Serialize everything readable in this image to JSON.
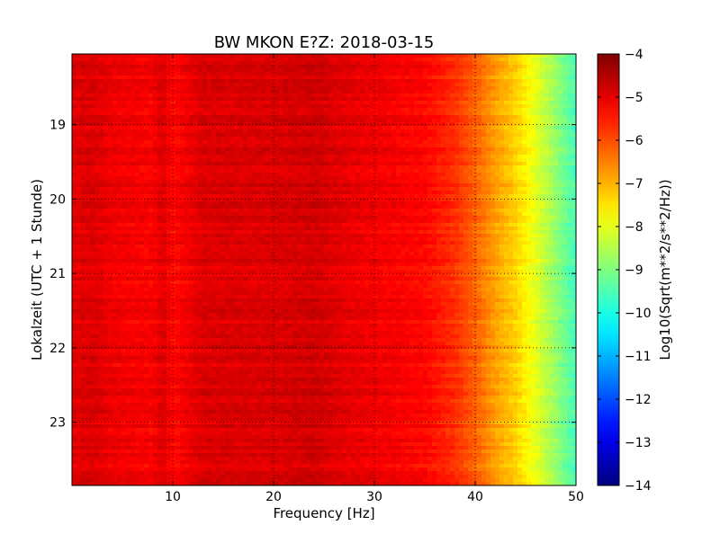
{
  "chart_data": {
    "type": "heatmap",
    "title": "BW MKON E?Z: 2018-03-15",
    "xlabel": "Frequency [Hz]",
    "ylabel": "Lokalzeit (UTC + 1 Stunde)",
    "xlim": [
      0,
      50
    ],
    "ylim_hours": [
      18.05,
      23.85
    ],
    "x_ticks": [
      {
        "value": 10,
        "label": "10"
      },
      {
        "value": 20,
        "label": "20"
      },
      {
        "value": 30,
        "label": "30"
      },
      {
        "value": 40,
        "label": "40"
      },
      {
        "value": 50,
        "label": "50"
      }
    ],
    "y_ticks": [
      {
        "value": 19,
        "label": "19"
      },
      {
        "value": 20,
        "label": "20"
      },
      {
        "value": 21,
        "label": "21"
      },
      {
        "value": 22,
        "label": "22"
      },
      {
        "value": 23,
        "label": "23"
      }
    ],
    "y_inverted": true,
    "grid": true,
    "colorscale": "jet",
    "colorbar": {
      "label": "Log10(Sqrt(m**2/s**2/Hz))",
      "min": -14,
      "max": -4,
      "ticks": [
        {
          "value": -4,
          "label": "−4"
        },
        {
          "value": -5,
          "label": "−5"
        },
        {
          "value": -6,
          "label": "−6"
        },
        {
          "value": -7,
          "label": "−7"
        },
        {
          "value": -8,
          "label": "−8"
        },
        {
          "value": -9,
          "label": "−9"
        },
        {
          "value": -10,
          "label": "−10"
        },
        {
          "value": -11,
          "label": "−11"
        },
        {
          "value": -12,
          "label": "−12"
        },
        {
          "value": -13,
          "label": "−13"
        },
        {
          "value": -14,
          "label": "−14"
        }
      ]
    },
    "spectrum_profile": [
      {
        "freq": 0,
        "level": -5.0
      },
      {
        "freq": 2,
        "level": -4.9
      },
      {
        "freq": 4,
        "level": -5.1
      },
      {
        "freq": 8,
        "level": -5.2
      },
      {
        "freq": 9,
        "level": -4.9
      },
      {
        "freq": 10,
        "level": -5.3
      },
      {
        "freq": 13,
        "level": -4.9
      },
      {
        "freq": 20,
        "level": -4.9
      },
      {
        "freq": 24,
        "level": -4.8
      },
      {
        "freq": 27,
        "level": -5.0
      },
      {
        "freq": 35,
        "level": -5.3
      },
      {
        "freq": 38,
        "level": -5.7
      },
      {
        "freq": 40,
        "level": -6.2
      },
      {
        "freq": 42,
        "level": -6.8
      },
      {
        "freq": 44,
        "level": -7.3
      },
      {
        "freq": 46,
        "level": -8.0
      },
      {
        "freq": 48,
        "level": -8.8
      },
      {
        "freq": 50,
        "level": -9.6
      }
    ]
  }
}
